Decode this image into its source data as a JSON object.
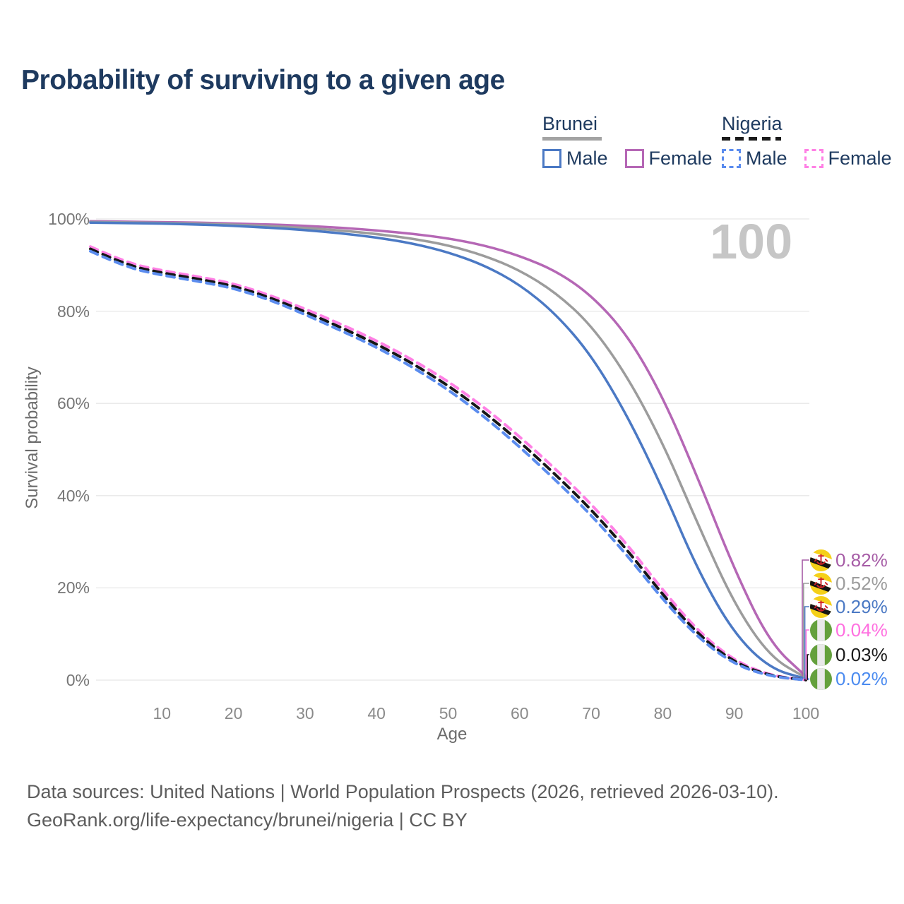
{
  "title": "Probability of surviving to a given age",
  "legend": {
    "groups": [
      {
        "country": "Brunei",
        "line_style": "solid",
        "underline_color": "#a3a3a3",
        "items": [
          {
            "label": "Male",
            "color": "#4b79c4"
          },
          {
            "label": "Female",
            "color": "#b567b5"
          }
        ]
      },
      {
        "country": "Nigeria",
        "line_style": "dashed",
        "underline_color": "#1a1a1a",
        "items": [
          {
            "label": "Male",
            "color": "#5b8cee"
          },
          {
            "label": "Female",
            "color": "#ff80e5"
          }
        ]
      }
    ]
  },
  "watermark": "100",
  "chart_data": {
    "type": "line",
    "title": "Probability of surviving to a given age",
    "xlabel": "Age",
    "ylabel": "Survival probability",
    "xlim": [
      0,
      100
    ],
    "ylim": [
      0,
      100
    ],
    "grid": "horizontal",
    "xticks": [
      10,
      20,
      30,
      40,
      50,
      60,
      70,
      80,
      90,
      100
    ],
    "yticks": [
      {
        "value": 0,
        "label": "0%"
      },
      {
        "value": 20,
        "label": "20%"
      },
      {
        "value": 40,
        "label": "40%"
      },
      {
        "value": 60,
        "label": "60%"
      },
      {
        "value": 80,
        "label": "80%"
      },
      {
        "value": 100,
        "label": "100%"
      }
    ],
    "x": [
      0,
      5,
      10,
      15,
      20,
      25,
      30,
      35,
      40,
      45,
      50,
      55,
      60,
      65,
      70,
      75,
      80,
      85,
      90,
      95,
      100
    ],
    "series": [
      {
        "name": "Brunei Female",
        "country": "Brunei",
        "sex": "Female",
        "color": "#b567b5",
        "dash": false,
        "values": [
          99.5,
          99.4,
          99.3,
          99.2,
          99.0,
          98.8,
          98.5,
          98.1,
          97.5,
          96.8,
          95.8,
          94.3,
          92.0,
          88.8,
          83.5,
          75.0,
          61.5,
          43.5,
          24.0,
          8.0,
          0.82
        ]
      },
      {
        "name": "Brunei Average",
        "country": "Brunei",
        "sex": "Both",
        "color": "#9c9c9c",
        "dash": false,
        "values": [
          99.35,
          99.25,
          99.15,
          99.0,
          98.75,
          98.45,
          98.05,
          97.5,
          96.75,
          95.75,
          94.3,
          92.1,
          88.9,
          84.1,
          77.0,
          66.0,
          51.5,
          33.5,
          16.5,
          5.0,
          0.52
        ]
      },
      {
        "name": "Brunei Male",
        "country": "Brunei",
        "sex": "Male",
        "color": "#4b79c4",
        "dash": false,
        "values": [
          99.2,
          99.1,
          99.0,
          98.8,
          98.5,
          98.1,
          97.6,
          96.9,
          96.0,
          94.7,
          92.8,
          90.0,
          85.8,
          79.5,
          70.5,
          57.5,
          41.5,
          23.5,
          10.0,
          2.5,
          0.29
        ]
      },
      {
        "name": "Nigeria Female",
        "country": "Nigeria",
        "sex": "Female",
        "color": "#ff80e5",
        "dash": true,
        "values": [
          94.0,
          90.5,
          88.8,
          87.5,
          86.0,
          83.5,
          80.5,
          77.2,
          73.6,
          69.5,
          64.8,
          59.2,
          52.8,
          45.8,
          38.2,
          29.5,
          19.5,
          10.5,
          4.2,
          1.0,
          0.04
        ]
      },
      {
        "name": "Nigeria Average",
        "country": "Nigeria",
        "sex": "Both",
        "color": "#161616",
        "dash": true,
        "values": [
          93.5,
          90.0,
          88.3,
          87.0,
          85.5,
          83.0,
          79.9,
          76.5,
          72.9,
          68.7,
          63.9,
          58.2,
          51.7,
          44.6,
          37.0,
          28.3,
          18.5,
          9.8,
          3.8,
          0.9,
          0.03
        ]
      },
      {
        "name": "Nigeria Male",
        "country": "Nigeria",
        "sex": "Male",
        "color": "#5b8cee",
        "dash": true,
        "values": [
          93.0,
          89.5,
          87.8,
          86.5,
          85.0,
          82.5,
          79.3,
          75.8,
          72.2,
          67.9,
          63.0,
          57.2,
          50.6,
          43.4,
          35.8,
          27.1,
          17.5,
          9.1,
          3.4,
          0.8,
          0.02
        ]
      }
    ]
  },
  "end_labels": [
    {
      "value": "0.82%",
      "color": "#a65ca6",
      "flag": "brunei"
    },
    {
      "value": "0.52%",
      "color": "#9c9c9c",
      "flag": "brunei"
    },
    {
      "value": "0.29%",
      "color": "#4b79c4",
      "flag": "brunei"
    },
    {
      "value": "0.04%",
      "color": "#ff6fe0",
      "flag": "nigeria"
    },
    {
      "value": "0.03%",
      "color": "#1a1a1a",
      "flag": "nigeria"
    },
    {
      "value": "0.02%",
      "color": "#4b8bf0",
      "flag": "nigeria"
    }
  ],
  "footer": {
    "line1": "Data sources: United Nations | World Population Prospects (2026, retrieved 2026-03-10).",
    "line2": "GeoRank.org/life-expectancy/brunei/nigeria | CC BY"
  }
}
